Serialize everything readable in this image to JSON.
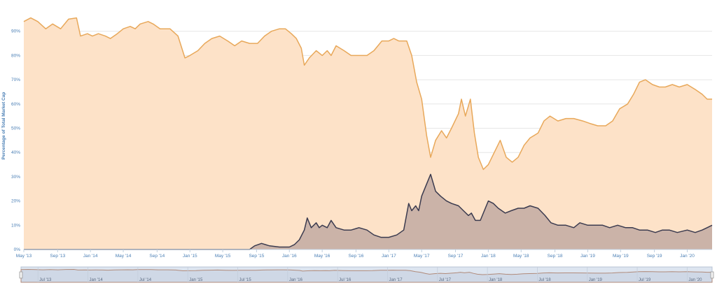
{
  "chart_data": {
    "type": "area",
    "title": "",
    "xlabel": "",
    "ylabel": "Percentage of Total Market Cap",
    "ylim": [
      0,
      100
    ],
    "yticks": [
      0,
      10,
      20,
      30,
      40,
      50,
      60,
      70,
      80,
      90
    ],
    "ytick_labels": [
      "0%",
      "10%",
      "20%",
      "30%",
      "40%",
      "50%",
      "60%",
      "70%",
      "80%",
      "90%"
    ],
    "xlim": [
      2013.33,
      2020.25
    ],
    "xticks": [
      {
        "x": 2013.33,
        "label": "May '13"
      },
      {
        "x": 2013.67,
        "label": "Sep '13"
      },
      {
        "x": 2014.0,
        "label": "Jan '14"
      },
      {
        "x": 2014.33,
        "label": "May '14"
      },
      {
        "x": 2014.67,
        "label": "Sep '14"
      },
      {
        "x": 2015.0,
        "label": "Jan '15"
      },
      {
        "x": 2015.33,
        "label": "May '15"
      },
      {
        "x": 2015.67,
        "label": "Sep '15"
      },
      {
        "x": 2016.0,
        "label": "Jan '16"
      },
      {
        "x": 2016.33,
        "label": "May '16"
      },
      {
        "x": 2016.67,
        "label": "Sep '16"
      },
      {
        "x": 2017.0,
        "label": "Jan '17"
      },
      {
        "x": 2017.33,
        "label": "May '17"
      },
      {
        "x": 2017.67,
        "label": "Sep '17"
      },
      {
        "x": 2018.0,
        "label": "Jan '18"
      },
      {
        "x": 2018.33,
        "label": "May '18"
      },
      {
        "x": 2018.67,
        "label": "Sep '18"
      },
      {
        "x": 2019.0,
        "label": "Jan '19"
      },
      {
        "x": 2019.33,
        "label": "May '19"
      },
      {
        "x": 2019.67,
        "label": "Sep '19"
      },
      {
        "x": 2020.0,
        "label": "Jan '20"
      }
    ],
    "grid": true,
    "legend": "none",
    "series": [
      {
        "color": "#e8a85a",
        "fill": "#fde2c8",
        "points": [
          [
            2013.33,
            94
          ],
          [
            2013.4,
            95.5
          ],
          [
            2013.47,
            94
          ],
          [
            2013.55,
            91
          ],
          [
            2013.62,
            93
          ],
          [
            2013.7,
            91
          ],
          [
            2013.78,
            95
          ],
          [
            2013.86,
            95.5
          ],
          [
            2013.9,
            88
          ],
          [
            2013.97,
            89
          ],
          [
            2014.02,
            88
          ],
          [
            2014.08,
            89
          ],
          [
            2014.15,
            88
          ],
          [
            2014.2,
            87
          ],
          [
            2014.27,
            89
          ],
          [
            2014.33,
            91
          ],
          [
            2014.4,
            92
          ],
          [
            2014.45,
            91
          ],
          [
            2014.5,
            93
          ],
          [
            2014.58,
            94
          ],
          [
            2014.63,
            93
          ],
          [
            2014.7,
            91
          ],
          [
            2014.8,
            91
          ],
          [
            2014.88,
            88
          ],
          [
            2014.95,
            79
          ],
          [
            2015.0,
            80
          ],
          [
            2015.08,
            82
          ],
          [
            2015.15,
            85
          ],
          [
            2015.22,
            87
          ],
          [
            2015.3,
            88
          ],
          [
            2015.38,
            86
          ],
          [
            2015.45,
            84
          ],
          [
            2015.52,
            86
          ],
          [
            2015.6,
            85
          ],
          [
            2015.68,
            85
          ],
          [
            2015.75,
            88
          ],
          [
            2015.82,
            90
          ],
          [
            2015.9,
            91
          ],
          [
            2015.96,
            91
          ],
          [
            2016.02,
            89
          ],
          [
            2016.07,
            87
          ],
          [
            2016.12,
            83
          ],
          [
            2016.15,
            76
          ],
          [
            2016.2,
            79
          ],
          [
            2016.27,
            82
          ],
          [
            2016.33,
            80
          ],
          [
            2016.38,
            82
          ],
          [
            2016.42,
            80
          ],
          [
            2016.47,
            84
          ],
          [
            2016.55,
            82
          ],
          [
            2016.62,
            80
          ],
          [
            2016.7,
            80
          ],
          [
            2016.78,
            80
          ],
          [
            2016.85,
            82
          ],
          [
            2016.93,
            86
          ],
          [
            2017.0,
            86
          ],
          [
            2017.05,
            87
          ],
          [
            2017.1,
            86
          ],
          [
            2017.18,
            86
          ],
          [
            2017.23,
            80
          ],
          [
            2017.28,
            69
          ],
          [
            2017.33,
            62
          ],
          [
            2017.38,
            47
          ],
          [
            2017.42,
            38
          ],
          [
            2017.47,
            45
          ],
          [
            2017.53,
            49
          ],
          [
            2017.58,
            46
          ],
          [
            2017.63,
            50
          ],
          [
            2017.7,
            56
          ],
          [
            2017.73,
            62
          ],
          [
            2017.77,
            55
          ],
          [
            2017.82,
            62
          ],
          [
            2017.86,
            48
          ],
          [
            2017.9,
            38
          ],
          [
            2017.95,
            33
          ],
          [
            2018.0,
            35
          ],
          [
            2018.06,
            40
          ],
          [
            2018.12,
            45
          ],
          [
            2018.18,
            38
          ],
          [
            2018.24,
            36
          ],
          [
            2018.3,
            38
          ],
          [
            2018.36,
            43
          ],
          [
            2018.42,
            46
          ],
          [
            2018.5,
            48
          ],
          [
            2018.56,
            53
          ],
          [
            2018.62,
            55
          ],
          [
            2018.7,
            53
          ],
          [
            2018.78,
            54
          ],
          [
            2018.86,
            54
          ],
          [
            2018.95,
            53
          ],
          [
            2019.02,
            52
          ],
          [
            2019.1,
            51
          ],
          [
            2019.18,
            51
          ],
          [
            2019.25,
            53
          ],
          [
            2019.32,
            58
          ],
          [
            2019.4,
            60
          ],
          [
            2019.46,
            64
          ],
          [
            2019.52,
            69
          ],
          [
            2019.58,
            70
          ],
          [
            2019.65,
            68
          ],
          [
            2019.72,
            67
          ],
          [
            2019.78,
            67
          ],
          [
            2019.85,
            68
          ],
          [
            2019.92,
            67
          ],
          [
            2020.0,
            68
          ],
          [
            2020.08,
            66
          ],
          [
            2020.15,
            64
          ],
          [
            2020.2,
            62
          ],
          [
            2020.25,
            62
          ]
        ]
      },
      {
        "color": "#3b3b4f",
        "fill": "#cbb3a8",
        "points": [
          [
            2013.33,
            0
          ],
          [
            2015.6,
            0
          ],
          [
            2015.65,
            1.5
          ],
          [
            2015.72,
            2.5
          ],
          [
            2015.8,
            1.5
          ],
          [
            2015.9,
            1
          ],
          [
            2016.0,
            1
          ],
          [
            2016.05,
            2
          ],
          [
            2016.1,
            4
          ],
          [
            2016.15,
            8
          ],
          [
            2016.18,
            13
          ],
          [
            2016.22,
            9
          ],
          [
            2016.27,
            11
          ],
          [
            2016.3,
            9
          ],
          [
            2016.33,
            10
          ],
          [
            2016.38,
            9
          ],
          [
            2016.42,
            12
          ],
          [
            2016.47,
            9
          ],
          [
            2016.55,
            8
          ],
          [
            2016.62,
            8
          ],
          [
            2016.7,
            9
          ],
          [
            2016.78,
            8
          ],
          [
            2016.85,
            6
          ],
          [
            2016.92,
            5
          ],
          [
            2017.0,
            5
          ],
          [
            2017.08,
            6
          ],
          [
            2017.15,
            8
          ],
          [
            2017.2,
            19
          ],
          [
            2017.23,
            16
          ],
          [
            2017.27,
            18
          ],
          [
            2017.3,
            16
          ],
          [
            2017.33,
            22
          ],
          [
            2017.38,
            27
          ],
          [
            2017.42,
            31
          ],
          [
            2017.47,
            24
          ],
          [
            2017.52,
            22
          ],
          [
            2017.58,
            20
          ],
          [
            2017.63,
            19
          ],
          [
            2017.7,
            18
          ],
          [
            2017.75,
            16
          ],
          [
            2017.8,
            14
          ],
          [
            2017.83,
            15
          ],
          [
            2017.87,
            12
          ],
          [
            2017.92,
            12
          ],
          [
            2018.0,
            20
          ],
          [
            2018.05,
            19
          ],
          [
            2018.1,
            17
          ],
          [
            2018.17,
            15
          ],
          [
            2018.23,
            16
          ],
          [
            2018.3,
            17
          ],
          [
            2018.36,
            17
          ],
          [
            2018.42,
            18
          ],
          [
            2018.5,
            17
          ],
          [
            2018.57,
            14
          ],
          [
            2018.63,
            11
          ],
          [
            2018.7,
            10
          ],
          [
            2018.78,
            10
          ],
          [
            2018.86,
            9
          ],
          [
            2018.92,
            11
          ],
          [
            2019.0,
            10
          ],
          [
            2019.08,
            10
          ],
          [
            2019.15,
            10
          ],
          [
            2019.22,
            9
          ],
          [
            2019.3,
            10
          ],
          [
            2019.38,
            9
          ],
          [
            2019.45,
            9
          ],
          [
            2019.52,
            8
          ],
          [
            2019.6,
            8
          ],
          [
            2019.68,
            7
          ],
          [
            2019.75,
            8
          ],
          [
            2019.82,
            8
          ],
          [
            2019.9,
            7
          ],
          [
            2020.0,
            8
          ],
          [
            2020.08,
            7
          ],
          [
            2020.15,
            8
          ],
          [
            2020.2,
            9
          ],
          [
            2020.25,
            10
          ]
        ]
      }
    ],
    "navigator": {
      "labels": [
        {
          "x": 2013.5,
          "label": "Jul '13"
        },
        {
          "x": 2014.0,
          "label": "Jan '14"
        },
        {
          "x": 2014.5,
          "label": "Jul '14"
        },
        {
          "x": 2015.0,
          "label": "Jan '15"
        },
        {
          "x": 2015.5,
          "label": "Jul '15"
        },
        {
          "x": 2016.0,
          "label": "Jan '16"
        },
        {
          "x": 2016.5,
          "label": "Jul '16"
        },
        {
          "x": 2017.0,
          "label": "Jan '17"
        },
        {
          "x": 2017.5,
          "label": "Jul '17"
        },
        {
          "x": 2018.0,
          "label": "Jan '18"
        },
        {
          "x": 2018.5,
          "label": "Jul '18"
        },
        {
          "x": 2019.0,
          "label": "Jan '19"
        },
        {
          "x": 2019.5,
          "label": "Jul '19"
        },
        {
          "x": 2020.0,
          "label": "Jan '20"
        }
      ]
    }
  }
}
